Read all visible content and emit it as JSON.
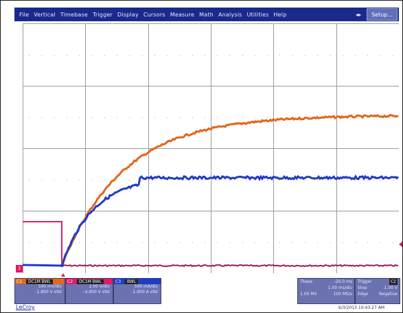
{
  "menu": {
    "items": [
      "File",
      "Vertical",
      "Timebase",
      "Trigger",
      "Display",
      "Cursors",
      "Measure",
      "Math",
      "Analysis",
      "Utilities",
      "Help"
    ],
    "arrows": "◂▸",
    "setup": "Setup..."
  },
  "scope": {
    "divisions_x": 6,
    "divisions_y": 4,
    "trace_colors": {
      "c1": "#e2661a",
      "c2": "#e01a6a",
      "c3": "#1f3bc9",
      "c2_baseline": "#9a1a5c"
    }
  },
  "markers": {
    "left": "3"
  },
  "channels": [
    {
      "id": "c1",
      "name": "C1",
      "tag": "DC1M BWL",
      "lines": [
        "500 mV/div",
        "-1.800 V ofst"
      ]
    },
    {
      "id": "c2",
      "name": "C2",
      "tag": "DC1M BWL",
      "lines": [
        "2.00 V/div",
        "-4.000 V ofst"
      ]
    },
    {
      "id": "c3",
      "name": "C3",
      "tag": "BWL",
      "lines": [
        "500 mA/div",
        "-1.000 A ofst"
      ]
    }
  ],
  "timebase": {
    "label": "Tbase",
    "value": "-20.0 ms",
    "line2_left": "",
    "line2_right": "1.00 ms/div",
    "line3_left": "1.00 MS",
    "line3_right": "100 MS/s"
  },
  "trigger": {
    "label": "Trigger",
    "tag": "C2",
    "line2_left": "Stop",
    "line2_right": "1.00 V",
    "line3_left": "Edge",
    "line3_right": "Negative"
  },
  "footer": {
    "logo": "LeCroy",
    "datetime": "6/3/2013 10:43:27 AM"
  }
}
